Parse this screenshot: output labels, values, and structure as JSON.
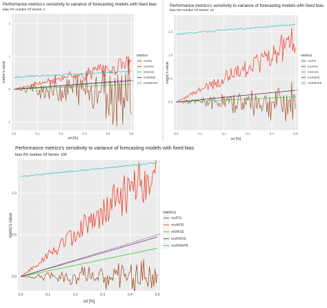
{
  "panels": [
    {
      "title": "Performance metrics's sensitivity to variance of forecasting models with fixed bias",
      "subtitle": "bias 0% number Of Series: 1",
      "xlabel": "sd [%]",
      "ylabel": "metric's value",
      "legend_title": "metrics",
      "legend_placement": "right",
      "chart_data": {
        "type": "line",
        "title": "Performance metrics's sensitivity to variance of forecasting models with fixed bias",
        "subtitle": "bias 0% number Of Series: 1",
        "xlabel": "sd [%]",
        "ylabel": "metric's value",
        "xlim": [
          -0.01,
          0.51
        ],
        "ylim": [
          -1.25,
          2.3
        ],
        "xticks": [
          0.0,
          0.1,
          0.2,
          0.3,
          0.4,
          0.5
        ],
        "xtick_labels": [
          "0.0",
          "0.1",
          "0.2",
          "0.3",
          "0.4",
          "0.5"
        ],
        "yticks": [
          -1,
          0,
          1,
          2
        ],
        "ytick_labels": [
          "-1",
          "0",
          "1",
          "2"
        ],
        "grid": true,
        "legend": "right",
        "series": [
          {
            "name": "msPIS",
            "color": "#a0522d",
            "noise": "symmetric",
            "slope": 0.0,
            "amp": 1.5,
            "base": 0.0
          },
          {
            "name": "msAPIS",
            "color": "#ef3b2c",
            "noise": "positive",
            "slope": 1.6,
            "amp": 0.9,
            "base": 0.0
          },
          {
            "name": "mMASE",
            "color": "#33cc33",
            "noise": "line",
            "slope": 0.3,
            "amp": 0.0,
            "base": 0.0
          },
          {
            "name": "msRMSE",
            "color": "#7b3294",
            "noise": "line",
            "slope": 0.55,
            "amp": 0.0,
            "base": 0.0
          },
          {
            "name": "msRMAPE",
            "color": "#2ec4c4",
            "noise": "line",
            "slope": 0.35,
            "amp": 0.05,
            "base": 0.37
          }
        ],
        "reference_line": {
          "style": "dashed",
          "slope": 0.5,
          "intercept": 0.0
        }
      }
    },
    {
      "title": "Performance metrics's sensitivity to variance of forecasting models with fixed bias",
      "subtitle": "bias 0% number Of Series: 10",
      "xlabel": "sd [%]",
      "ylabel": "metric's value",
      "legend_title": "metrics",
      "legend_placement": "right",
      "chart_data": {
        "type": "line",
        "title": "Performance metrics's sensitivity to variance of forecasting models with fixed bias",
        "subtitle": "bias 0% number Of Series: 10",
        "xlabel": "sd [%]",
        "ylabel": "metric's value",
        "xlim": [
          -0.01,
          0.51
        ],
        "ylim": [
          -0.6,
          1.85
        ],
        "xticks": [
          0.0,
          0.1,
          0.2,
          0.3,
          0.4,
          0.5
        ],
        "xtick_labels": [
          "0.0",
          "0.1",
          "0.2",
          "0.3",
          "0.4",
          "0.5"
        ],
        "yticks": [
          0.0,
          0.5,
          1.0,
          1.5
        ],
        "ytick_labels": [
          "0.0",
          "0.5",
          "1.0",
          "1.5"
        ],
        "grid": true,
        "legend": "right",
        "series": [
          {
            "name": "msPIS",
            "color": "#a0522d",
            "noise": "symmetric",
            "slope": 0.0,
            "amp": 0.55,
            "base": 0.0
          },
          {
            "name": "msAPIS",
            "color": "#ef3b2c",
            "noise": "positive",
            "slope": 2.5,
            "amp": 0.35,
            "base": 0.0
          },
          {
            "name": "mMASE",
            "color": "#33cc33",
            "noise": "line",
            "slope": 0.22,
            "amp": 0.0,
            "base": 0.0
          },
          {
            "name": "msRMSE",
            "color": "#7b3294",
            "noise": "line",
            "slope": 0.5,
            "amp": 0.0,
            "base": 0.0
          },
          {
            "name": "msRMAPE",
            "color": "#2ec4c4",
            "noise": "line",
            "slope": 0.4,
            "amp": 0.03,
            "base": 1.45
          }
        ],
        "reference_line": {
          "style": "dashed",
          "slope": 0.5,
          "intercept": 0.0
        }
      }
    },
    {
      "title": "Performance metrics's sensitivity to variance of forecasting models with fixed bias",
      "subtitle": "bias 0% number Of Series: 100",
      "xlabel": "sd [%]",
      "ylabel": "metric's value",
      "legend_title": "metrics",
      "legend_placement": "right",
      "chart_data": {
        "type": "line",
        "title": "Performance metrics's sensitivity to variance of forecasting models with fixed bias",
        "subtitle": "bias 0% number Of Series: 100",
        "xlabel": "sd [%]",
        "ylabel": "metric's value",
        "xlim": [
          -0.01,
          0.51
        ],
        "ylim": [
          -0.17,
          1.4
        ],
        "xticks": [
          0.0,
          0.1,
          0.2,
          0.3,
          0.4,
          0.5
        ],
        "xtick_labels": [
          "0.0",
          "0.1",
          "0.2",
          "0.3",
          "0.4",
          "0.5"
        ],
        "yticks": [
          0.0,
          0.5,
          1.0
        ],
        "ytick_labels": [
          "0.0",
          "0.5",
          "1.0"
        ],
        "grid": true,
        "legend": "right",
        "series": [
          {
            "name": "msPIS",
            "color": "#a0522d",
            "noise": "symmetric",
            "slope": 0.0,
            "amp": 0.3,
            "base": 0.0
          },
          {
            "name": "msAPIS",
            "color": "#ef3b2c",
            "noise": "positive",
            "slope": 2.55,
            "amp": 0.1,
            "base": 0.0
          },
          {
            "name": "mMASE",
            "color": "#33cc33",
            "noise": "line",
            "slope": 0.68,
            "amp": 0.0,
            "base": 0.0
          },
          {
            "name": "msRMSE",
            "color": "#7b3294",
            "noise": "line",
            "slope": 0.95,
            "amp": 0.0,
            "base": 0.0
          },
          {
            "name": "msRMAPE",
            "color": "#2ec4c4",
            "noise": "line",
            "slope": 0.33,
            "amp": 0.015,
            "base": 1.2
          }
        ],
        "reference_line": {
          "style": "dashed",
          "slope": 1.0,
          "intercept": 0.0
        }
      }
    }
  ]
}
